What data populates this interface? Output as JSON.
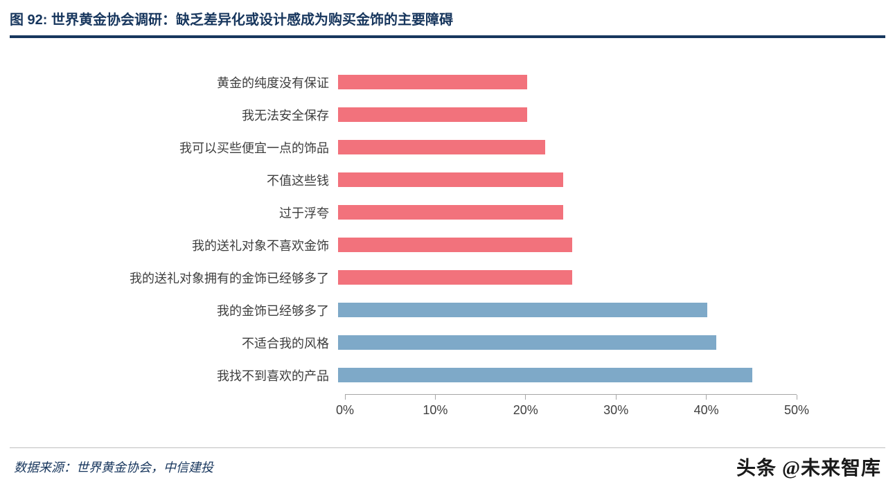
{
  "header": {
    "title": "图 92: 世界黄金协会调研：缺乏差异化或设计感成为购买金饰的主要障碍"
  },
  "chart_data": {
    "type": "bar",
    "orientation": "horizontal",
    "title": "世界黄金协会调研：缺乏差异化或设计感成为购买金饰的主要障碍",
    "xlabel": "",
    "ylabel": "",
    "xlim": [
      0,
      50
    ],
    "grid": false,
    "legend": false,
    "x_ticks": [
      "0%",
      "10%",
      "20%",
      "30%",
      "40%",
      "50%"
    ],
    "x_tick_values": [
      0,
      10,
      20,
      30,
      40,
      50
    ],
    "bars": [
      {
        "label": "黄金的纯度没有保证",
        "value": 21,
        "color": "#f2727c"
      },
      {
        "label": "我无法安全保存",
        "value": 21,
        "color": "#f2727c"
      },
      {
        "label": "我可以买些便宜一点的饰品",
        "value": 23,
        "color": "#f2727c"
      },
      {
        "label": "不值这些钱",
        "value": 25,
        "color": "#f2727c"
      },
      {
        "label": "过于浮夸",
        "value": 25,
        "color": "#f2727c"
      },
      {
        "label": "我的送礼对象不喜欢金饰",
        "value": 26,
        "color": "#f2727c"
      },
      {
        "label": "我的送礼对象拥有的金饰已经够多了",
        "value": 26,
        "color": "#f2727c"
      },
      {
        "label": "我的金饰已经够多了",
        "value": 41,
        "color": "#7ea9c8"
      },
      {
        "label": "不适合我的风格",
        "value": 42,
        "color": "#7ea9c8"
      },
      {
        "label": "我找不到喜欢的产品",
        "value": 46,
        "color": "#7ea9c8"
      }
    ],
    "colors": {
      "red_series": "#f2727c",
      "blue_series": "#7ea9c8",
      "axis": "#a6a6a6",
      "title": "#17365d"
    }
  },
  "footer": {
    "source": "数据来源：世界黄金协会，中信建投",
    "brand": "头条 @未来智库"
  }
}
